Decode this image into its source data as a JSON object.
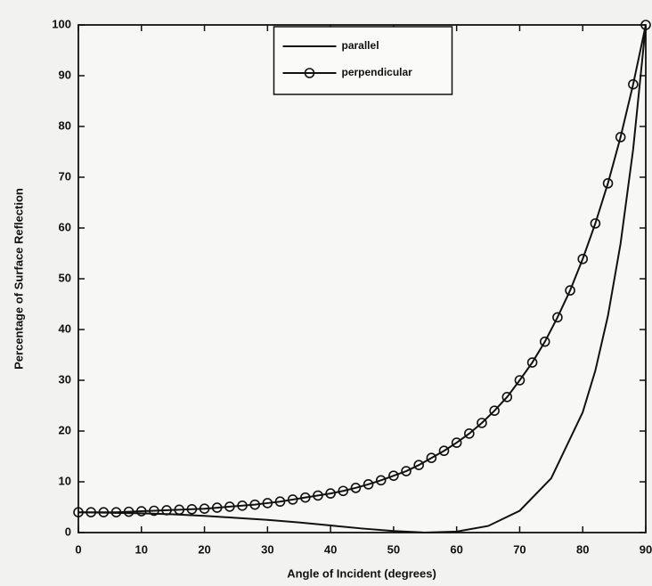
{
  "chart_data": {
    "type": "line",
    "xlabel": "Angle of Incident (degrees)",
    "ylabel": "Percentage of Surface Reflection",
    "xlim": [
      0,
      90
    ],
    "ylim": [
      0,
      100
    ],
    "xticks": [
      0,
      10,
      20,
      30,
      40,
      50,
      60,
      70,
      80,
      90
    ],
    "yticks": [
      0,
      10,
      20,
      30,
      40,
      50,
      60,
      70,
      80,
      90,
      100
    ],
    "legend": "top-center",
    "series": [
      {
        "name": "parallel",
        "color": "#111111",
        "marker": "none",
        "x": [
          0,
          5,
          10,
          15,
          20,
          25,
          30,
          35,
          40,
          45,
          50,
          55,
          60,
          65,
          70,
          75,
          80,
          82,
          84,
          86,
          88,
          90
        ],
        "values": [
          4.0,
          3.9,
          3.8,
          3.6,
          3.3,
          2.9,
          2.5,
          2.0,
          1.4,
          0.8,
          0.3,
          0.0,
          0.2,
          1.3,
          4.3,
          10.7,
          23.7,
          31.9,
          42.7,
          56.9,
          75.5,
          100
        ]
      },
      {
        "name": "perpendicular",
        "color": "#111111",
        "marker": "circle",
        "x": [
          0,
          2,
          4,
          6,
          8,
          10,
          12,
          14,
          16,
          18,
          20,
          22,
          24,
          26,
          28,
          30,
          32,
          34,
          36,
          38,
          40,
          42,
          44,
          46,
          48,
          50,
          52,
          54,
          56,
          58,
          60,
          62,
          64,
          66,
          68,
          70,
          72,
          74,
          76,
          78,
          80,
          82,
          84,
          86,
          88,
          90
        ],
        "values": [
          4.0,
          4.0,
          4.0,
          4.0,
          4.1,
          4.2,
          4.3,
          4.4,
          4.5,
          4.6,
          4.7,
          4.9,
          5.1,
          5.3,
          5.5,
          5.8,
          6.1,
          6.5,
          6.9,
          7.3,
          7.7,
          8.2,
          8.8,
          9.5,
          10.3,
          11.2,
          12.1,
          13.3,
          14.7,
          16.1,
          17.7,
          19.5,
          21.6,
          24.0,
          26.7,
          30.0,
          33.5,
          37.6,
          42.4,
          47.7,
          53.9,
          60.9,
          68.8,
          77.9,
          88.3,
          100
        ]
      }
    ]
  }
}
